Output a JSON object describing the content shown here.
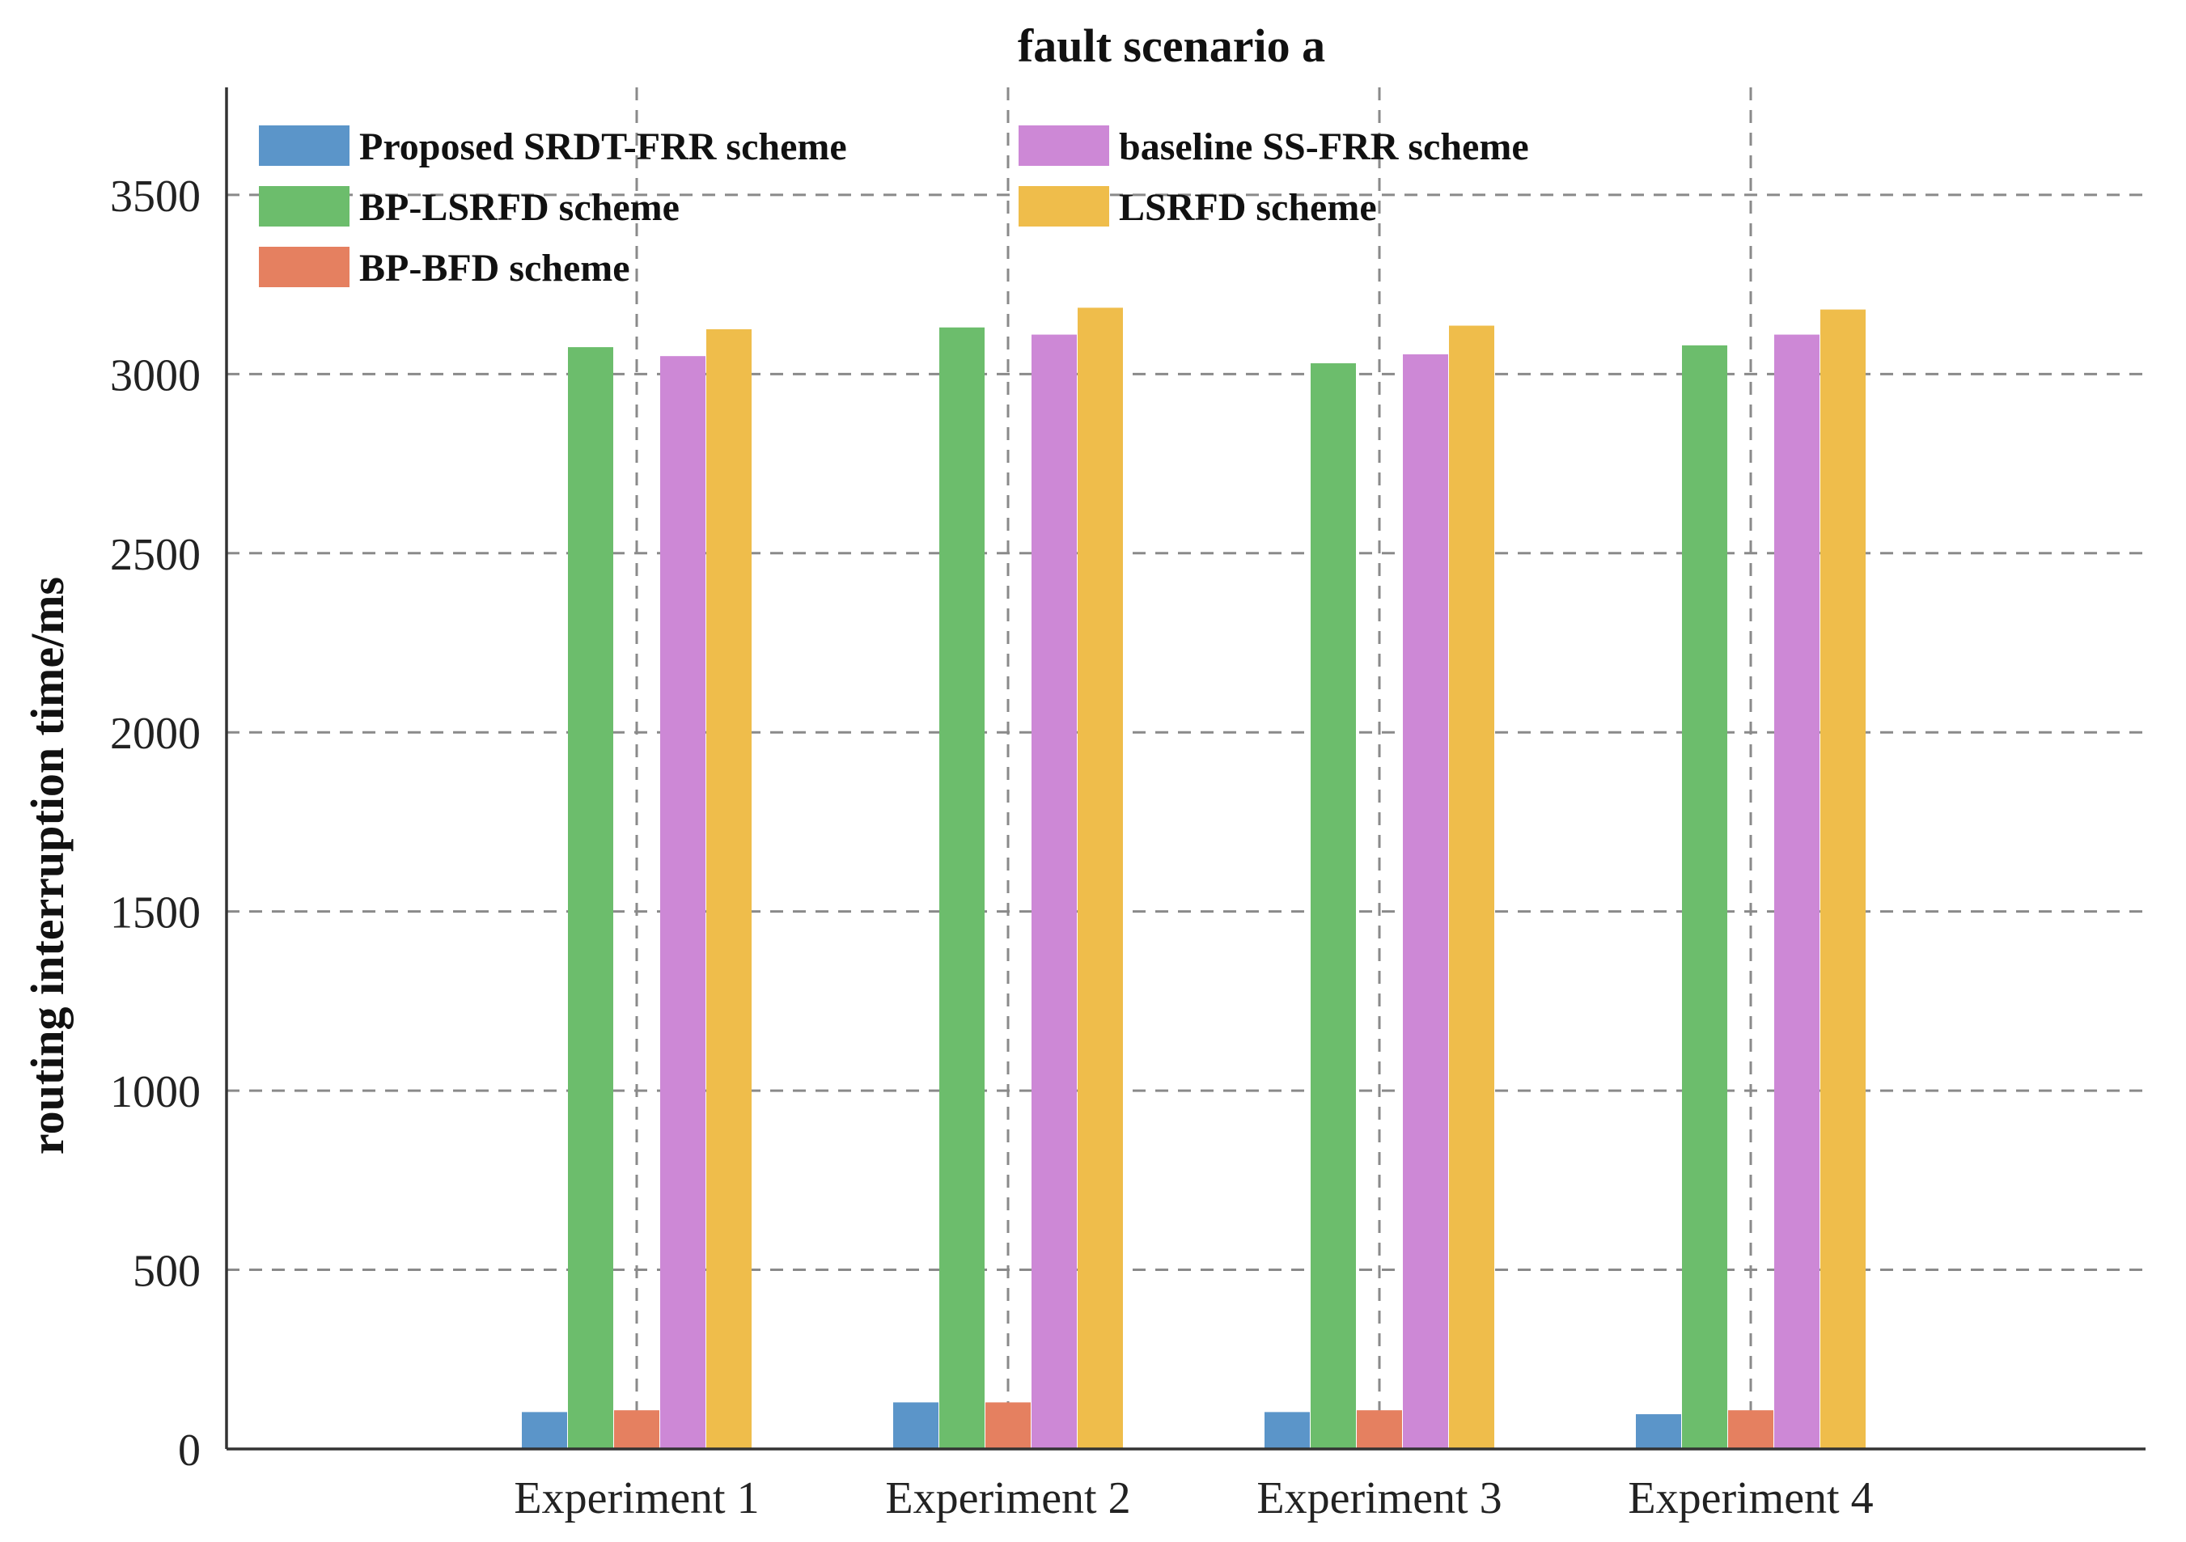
{
  "chart_data": {
    "type": "bar",
    "title": "fault scenario a",
    "xlabel": "",
    "ylabel": "routing interruption time/ms",
    "categories": [
      "Experiment 1",
      "Experiment 2",
      "Experiment 3",
      "Experiment 4"
    ],
    "ylim": [
      0,
      3800
    ],
    "yticks": [
      0,
      500,
      1000,
      1500,
      2000,
      2500,
      3000,
      3500
    ],
    "grid": true,
    "legend_position": "top-left",
    "series": [
      {
        "name": "Proposed SRDT-FRR scheme",
        "color": "#5b95c9",
        "values": [
          103,
          130,
          103,
          97
        ]
      },
      {
        "name": "BP-LSRFD scheme",
        "color": "#6cbd6c",
        "values": [
          3075,
          3130,
          3030,
          3080
        ]
      },
      {
        "name": "BP-BFD scheme",
        "color": "#e58060",
        "values": [
          108,
          130,
          108,
          108
        ]
      },
      {
        "name": "baseline SS-FRR scheme",
        "color": "#cd88d6",
        "values": [
          3050,
          3110,
          3055,
          3110
        ]
      },
      {
        "name": "LSRFD scheme",
        "color": "#efbd4b",
        "values": [
          3125,
          3185,
          3135,
          3180
        ]
      }
    ]
  }
}
